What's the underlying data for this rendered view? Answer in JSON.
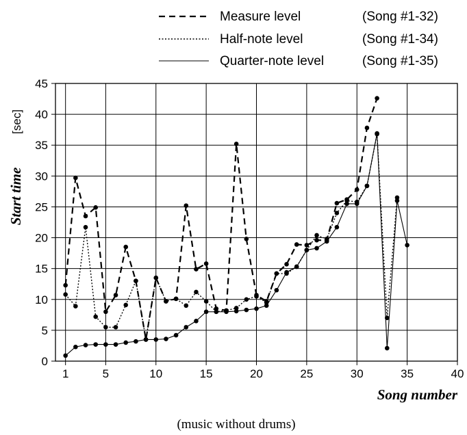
{
  "chart_data": {
    "type": "line",
    "title": "",
    "xlabel": "Song number",
    "ylabel": "Start time",
    "yunit": "[sec]",
    "caption": "(music without drums)",
    "xlim": [
      0,
      40
    ],
    "ylim": [
      0,
      45
    ],
    "xticks": [
      1,
      5,
      10,
      15,
      20,
      25,
      30,
      35,
      40
    ],
    "yticks": [
      0,
      5,
      10,
      15,
      20,
      25,
      30,
      35,
      40,
      45
    ],
    "grid": true,
    "legend_position": "top-right",
    "series": [
      {
        "name": "Measure level",
        "range": "(Song #1-32)",
        "style": "dashed",
        "x": [
          1,
          2,
          3,
          4,
          5,
          6,
          7,
          8,
          9,
          10,
          11,
          12,
          13,
          14,
          15,
          16,
          17,
          18,
          19,
          20,
          21,
          22,
          23,
          24,
          25,
          26,
          27,
          28,
          29,
          30,
          31,
          32
        ],
        "values": [
          12.3,
          29.7,
          23.5,
          24.9,
          8.0,
          10.7,
          18.5,
          13.0,
          3.5,
          13.5,
          9.7,
          10.1,
          25.2,
          14.9,
          15.8,
          8.5,
          8.2,
          35.2,
          19.8,
          10.7,
          9.7,
          14.2,
          15.7,
          18.9,
          18.8,
          19.6,
          19.6,
          25.6,
          26.2,
          27.8,
          37.8,
          42.6
        ]
      },
      {
        "name": "Half-note level",
        "range": "(Song #1-34)",
        "style": "dotted",
        "x": [
          1,
          2,
          3,
          4,
          5,
          6,
          7,
          8,
          9,
          10,
          11,
          12,
          13,
          14,
          15,
          16,
          17,
          18,
          19,
          20,
          21,
          22,
          23,
          24,
          25,
          26,
          27,
          28,
          29,
          30,
          31,
          32,
          33,
          34
        ],
        "values": [
          10.8,
          8.9,
          21.7,
          7.2,
          5.5,
          5.5,
          9.1,
          13.0,
          3.5,
          13.5,
          9.7,
          10.1,
          9.0,
          11.2,
          9.7,
          8.0,
          8.2,
          8.6,
          10.0,
          10.5,
          9.5,
          14.2,
          14.2,
          15.3,
          18.0,
          20.4,
          19.8,
          24.0,
          26.0,
          25.8,
          28.4,
          36.8,
          7.0,
          26.5
        ]
      },
      {
        "name": "Quarter-note level",
        "range": "(Song #1-35)",
        "style": "solid",
        "x": [
          1,
          2,
          3,
          4,
          5,
          6,
          7,
          8,
          9,
          10,
          11,
          12,
          13,
          14,
          15,
          16,
          17,
          18,
          19,
          20,
          21,
          22,
          23,
          24,
          25,
          26,
          27,
          28,
          29,
          30,
          31,
          32,
          33,
          34,
          35
        ],
        "values": [
          0.9,
          2.3,
          2.6,
          2.7,
          2.7,
          2.7,
          3.0,
          3.2,
          3.5,
          3.5,
          3.6,
          4.2,
          5.5,
          6.5,
          8.0,
          8.0,
          8.0,
          8.1,
          8.3,
          8.5,
          9.0,
          11.5,
          14.4,
          15.3,
          18.0,
          18.3,
          19.4,
          21.7,
          25.5,
          25.5,
          28.4,
          36.9,
          2.1,
          26.0,
          18.8
        ]
      }
    ]
  }
}
